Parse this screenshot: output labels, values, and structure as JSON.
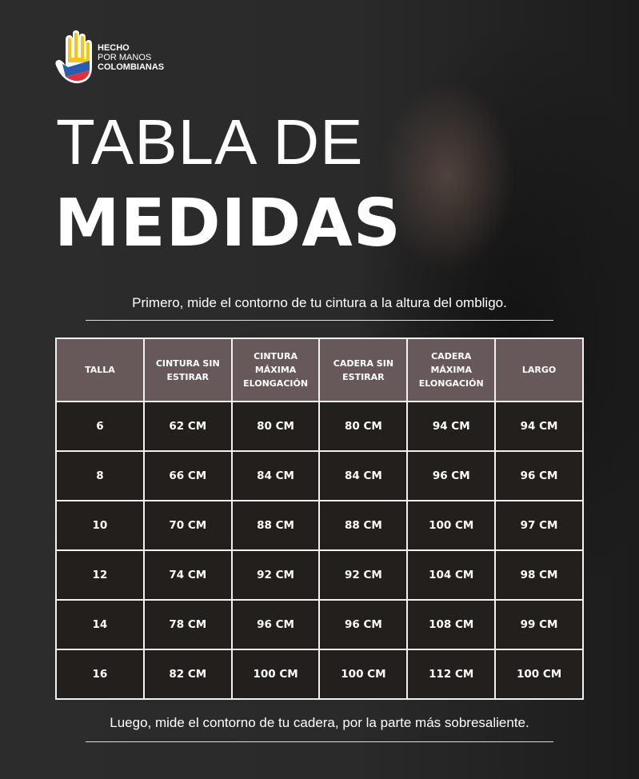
{
  "logo": {
    "line1": "HECHO",
    "line2": "POR MANOS",
    "line3": "COLOMBIANAS"
  },
  "title": {
    "line1": "TABLA DE",
    "line2": "MEDIDAS"
  },
  "note_top": "Primero, mide  el contorno de tu cintura a la altura del ombligo.",
  "note_bottom": "Luego, mide el contorno de tu cadera, por la parte más sobresaliente.",
  "table": {
    "headers": [
      "TALLA",
      "CINTURA SIN ESTIRAR",
      "CINTURA MÁXIMA ELONGACIÓN",
      "CADERA SIN ESTIRAR",
      "CADERA MÁXIMA ELONGACIÓN",
      "LARGO"
    ],
    "rows": [
      [
        "6",
        "62 CM",
        "80 CM",
        "80 CM",
        "94 CM",
        "94 CM"
      ],
      [
        "8",
        "66 CM",
        "84 CM",
        "84 CM",
        "96 CM",
        "96 CM"
      ],
      [
        "10",
        "70 CM",
        "88 CM",
        "88 CM",
        "100 CM",
        "97 CM"
      ],
      [
        "12",
        "74 CM",
        "92 CM",
        "92 CM",
        "104 CM",
        "98 CM"
      ],
      [
        "14",
        "78 CM",
        "96 CM",
        "96 CM",
        "108 CM",
        "99 CM"
      ],
      [
        "16",
        "82 CM",
        "100 CM",
        "100 CM",
        "112 CM",
        "100 CM"
      ]
    ]
  },
  "colors": {
    "header_bg": "#67595a",
    "row_bg": "#221f1c",
    "flag_yellow": "#f5c518",
    "flag_blue": "#2a5db0",
    "flag_red": "#e0303a"
  }
}
